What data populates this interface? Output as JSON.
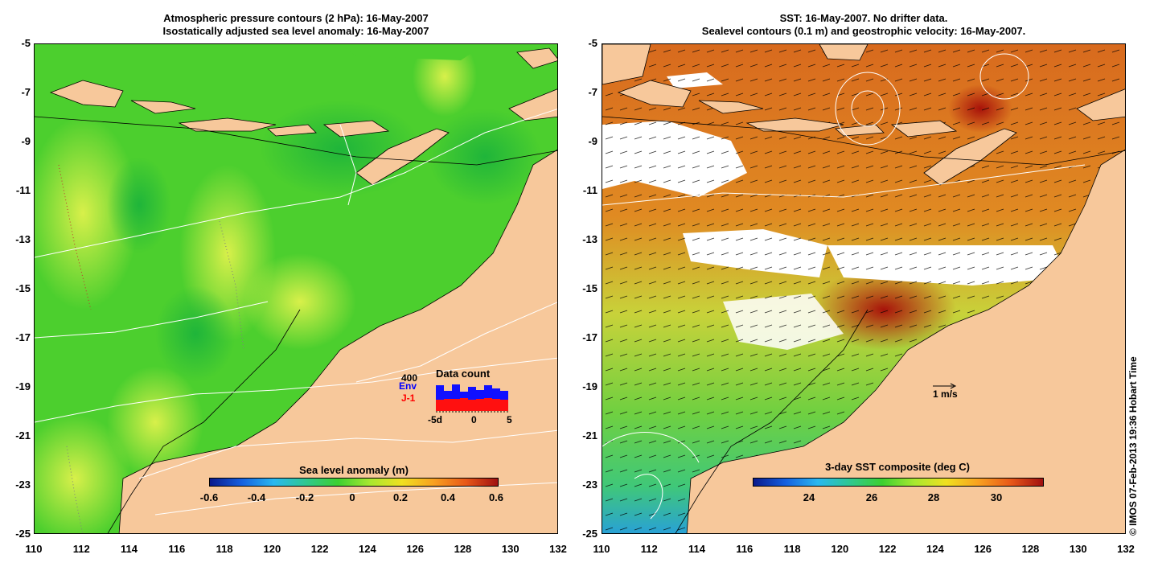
{
  "left_panel": {
    "title_line1": "Atmospheric pressure contours (2 hPa): 16-May-2007",
    "title_line2": "Isostatically adjusted sea level anomaly: 16-May-2007",
    "colorbar": {
      "title": "Sea level anomaly (m)",
      "tick_labels": [
        "-0.6",
        "-0.4",
        "-0.2",
        "0",
        "0.2",
        "0.4",
        "0.6"
      ]
    },
    "inset": {
      "title": "Data count",
      "max_label": "400",
      "series_env_label": "Env",
      "series_j1_label": "J-1",
      "x_labels": [
        "-5d",
        "0",
        "5"
      ],
      "env_counts": [
        320,
        250,
        330,
        240,
        300,
        260,
        320,
        280,
        250
      ],
      "j1_counts": [
        140,
        150,
        150,
        160,
        140,
        150,
        160,
        150,
        140
      ]
    }
  },
  "right_panel": {
    "title_line1": "SST: 16-May-2007. No drifter data.",
    "title_line2": "Sealevel contours (0.1 m) and geostrophic velocity: 16-May-2007.",
    "velocity_scale_label": "1 m/s",
    "colorbar": {
      "title": "3-day SST composite (deg C)",
      "tick_labels": [
        "24",
        "26",
        "28",
        "30"
      ]
    }
  },
  "axes": {
    "y_ticks": [
      "-5",
      "-7",
      "-9",
      "-11",
      "-13",
      "-15",
      "-17",
      "-19",
      "-21",
      "-23",
      "-25"
    ],
    "x_ticks": [
      "110",
      "112",
      "114",
      "116",
      "118",
      "120",
      "122",
      "124",
      "126",
      "128",
      "130",
      "132"
    ]
  },
  "copyright": "© IMOS 07-Feb-2013 19:36 Hobart Time",
  "colors": {
    "land": "#f7c89b",
    "sea_low": "#2ecc2e",
    "sea_high": "#c8f040",
    "sst_warm": "#d9561a",
    "sst_hot": "#a8120a"
  }
}
